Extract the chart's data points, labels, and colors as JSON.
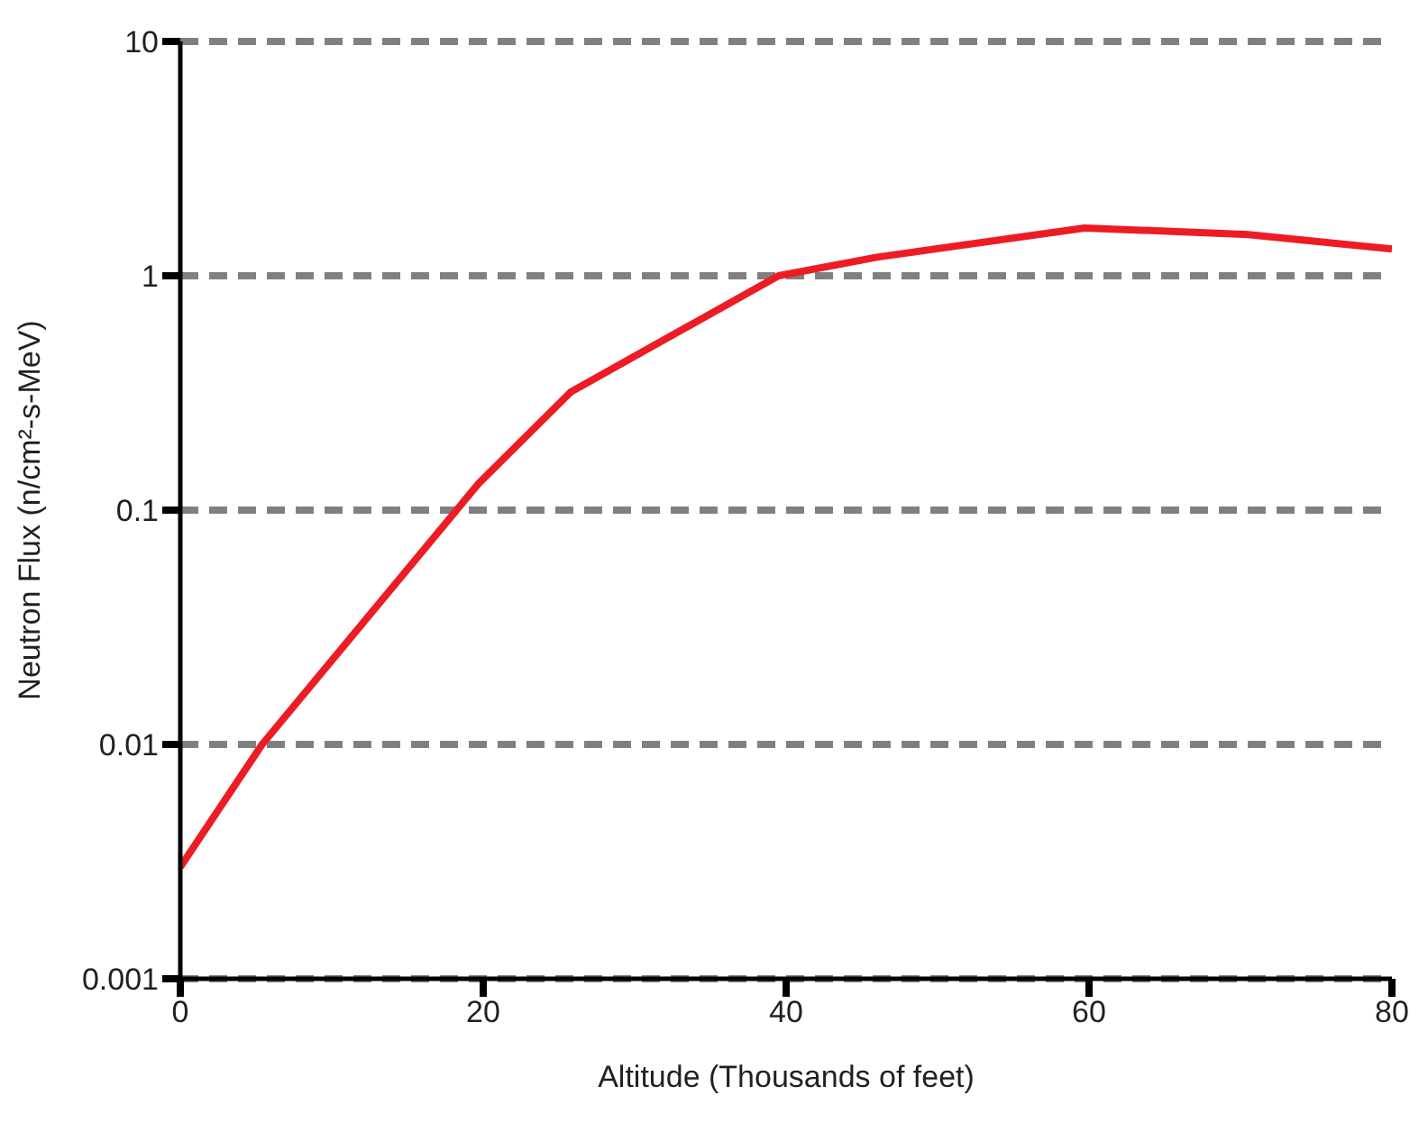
{
  "chart_data": {
    "type": "line",
    "xlabel": "Altitude (Thousands of feet)",
    "ylabel": "Neutron Flux (n/cm²-s-MeV)",
    "x": [
      0,
      5.4,
      19.7,
      25.8,
      39.5,
      46,
      59.7,
      70.5,
      80
    ],
    "series": [
      {
        "color": "#ed1c24",
        "values": [
          0.003,
          0.01,
          0.13,
          0.32,
          1,
          1.2,
          1.6,
          1.5,
          1.3
        ]
      }
    ],
    "xlim": [
      0,
      80
    ],
    "xticks": [
      0,
      20,
      40,
      60,
      80
    ],
    "ylim": [
      0.001,
      10
    ],
    "yticks": [
      0.001,
      0.01,
      0.1,
      1,
      10
    ],
    "log": "y",
    "grid": "y",
    "marker": "none",
    "line_style": "solid"
  }
}
